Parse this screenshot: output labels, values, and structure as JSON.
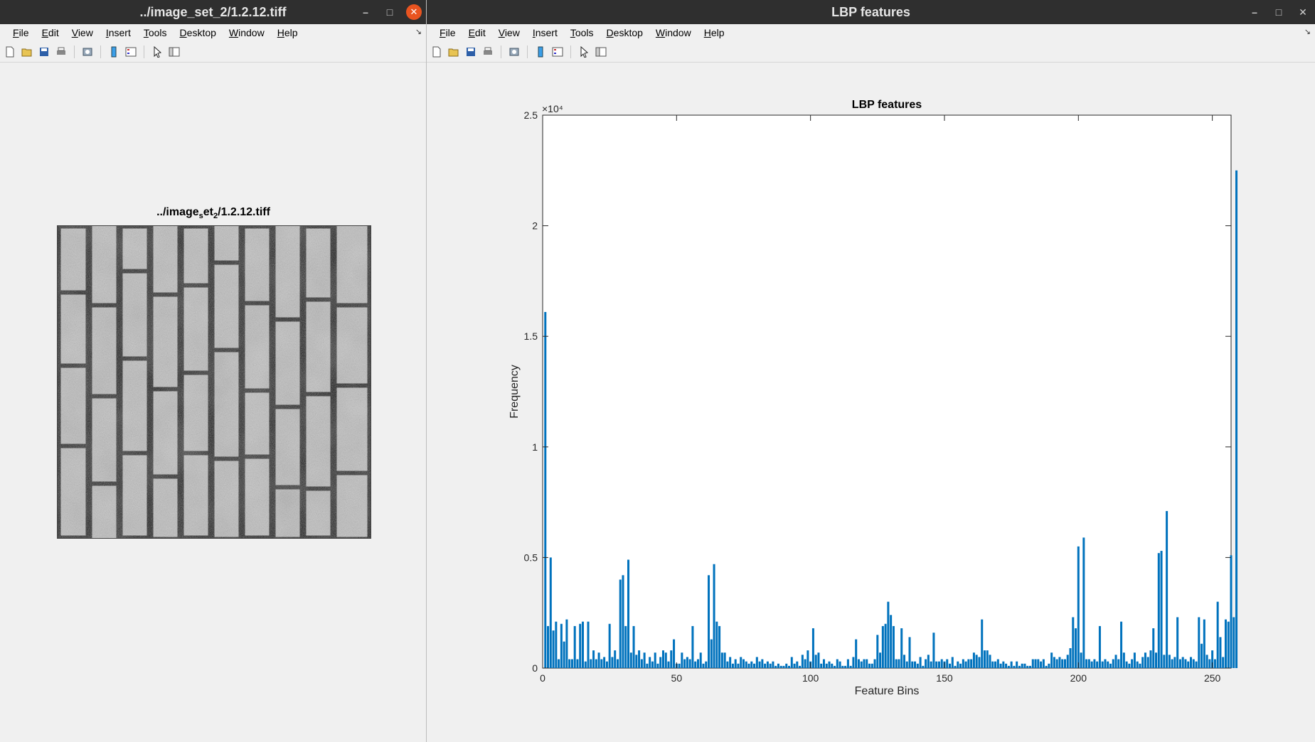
{
  "left_window": {
    "title": "../image_set_2/1.2.12.tiff",
    "menus": [
      "File",
      "Edit",
      "View",
      "Insert",
      "Tools",
      "Desktop",
      "Window",
      "Help"
    ],
    "axes_title_parts": [
      "../image",
      "s",
      "et",
      "2",
      "/1.2.12.tiff"
    ],
    "window_controls": {
      "minimize": "–",
      "maximize": "□",
      "close": "✕"
    }
  },
  "right_window": {
    "title": "LBP features",
    "menus": [
      "File",
      "Edit",
      "View",
      "Insert",
      "Tools",
      "Desktop",
      "Window",
      "Help"
    ],
    "window_controls": {
      "minimize": "–",
      "maximize": "□",
      "close": "✕"
    }
  },
  "toolbar_icons": [
    "new-figure-icon",
    "open-file-icon",
    "save-icon",
    "print-icon",
    "print-preview-icon",
    "insert-colorbar-icon",
    "insert-legend-icon",
    "edit-pointer-icon",
    "property-inspector-icon"
  ],
  "colors": {
    "bar": "#0072bd",
    "titlebar": "#2f2f2f",
    "close_button": "#e95420"
  },
  "chart_data": {
    "type": "bar",
    "title": "LBP features",
    "xlabel": "Feature Bins",
    "ylabel": "Frequency",
    "y_exponent_label": "×10⁴",
    "xlim": [
      0,
      257
    ],
    "ylim": [
      0,
      25000
    ],
    "xticks": [
      0,
      50,
      100,
      150,
      200,
      250
    ],
    "yticks": [
      0,
      5000,
      10000,
      15000,
      20000,
      25000
    ],
    "ytick_labels": [
      "0",
      "0.5",
      "1",
      "1.5",
      "2",
      "2.5"
    ],
    "x_start": 1,
    "values": [
      16100,
      1900,
      5000,
      1700,
      2100,
      400,
      2000,
      1200,
      2200,
      400,
      400,
      1900,
      400,
      2000,
      2100,
      300,
      2100,
      400,
      800,
      400,
      700,
      400,
      500,
      300,
      2000,
      500,
      800,
      400,
      4000,
      4200,
      1900,
      4900,
      700,
      1900,
      600,
      800,
      400,
      700,
      200,
      500,
      300,
      700,
      200,
      500,
      800,
      700,
      300,
      800,
      1300,
      200,
      200,
      700,
      400,
      500,
      400,
      1900,
      300,
      400,
      700,
      200,
      300,
      4200,
      1300,
      4700,
      2100,
      1900,
      700,
      700,
      300,
      500,
      200,
      400,
      200,
      500,
      400,
      300,
      200,
      300,
      200,
      500,
      300,
      400,
      200,
      300,
      200,
      300,
      100,
      200,
      100,
      100,
      200,
      100,
      500,
      200,
      300,
      100,
      600,
      400,
      800,
      300,
      1800,
      600,
      700,
      200,
      400,
      200,
      300,
      200,
      100,
      400,
      300,
      100,
      100,
      400,
      100,
      500,
      1300,
      400,
      300,
      400,
      400,
      200,
      200,
      400,
      1500,
      700,
      1900,
      2000,
      3000,
      2400,
      1900,
      400,
      400,
      1800,
      600,
      300,
      1400,
      300,
      300,
      200,
      500,
      100,
      400,
      600,
      300,
      1600,
      300,
      300,
      400,
      300,
      400,
      200,
      500,
      100,
      300,
      200,
      400,
      300,
      400,
      400,
      700,
      600,
      500,
      2200,
      800,
      800,
      600,
      300,
      300,
      400,
      200,
      300,
      200,
      100,
      300,
      100,
      300,
      100,
      200,
      200,
      100,
      100,
      400,
      400,
      400,
      300,
      400,
      100,
      200,
      700,
      500,
      400,
      500,
      400,
      400,
      600,
      900,
      2300,
      1800,
      5500,
      700,
      5900,
      400,
      400,
      300,
      400,
      300,
      1900,
      300,
      400,
      300,
      200,
      400,
      600,
      400,
      2100,
      700,
      300,
      200,
      400,
      700,
      300,
      200,
      500,
      700,
      500,
      800,
      1800,
      700,
      5200,
      5300,
      600,
      7100,
      600,
      400,
      500,
      2300,
      400,
      500,
      400,
      300,
      500,
      400,
      300,
      2300,
      1100,
      2200,
      600,
      400,
      800,
      400,
      3000,
      1400,
      500,
      2200,
      2100,
      5100,
      2300,
      22500
    ]
  }
}
